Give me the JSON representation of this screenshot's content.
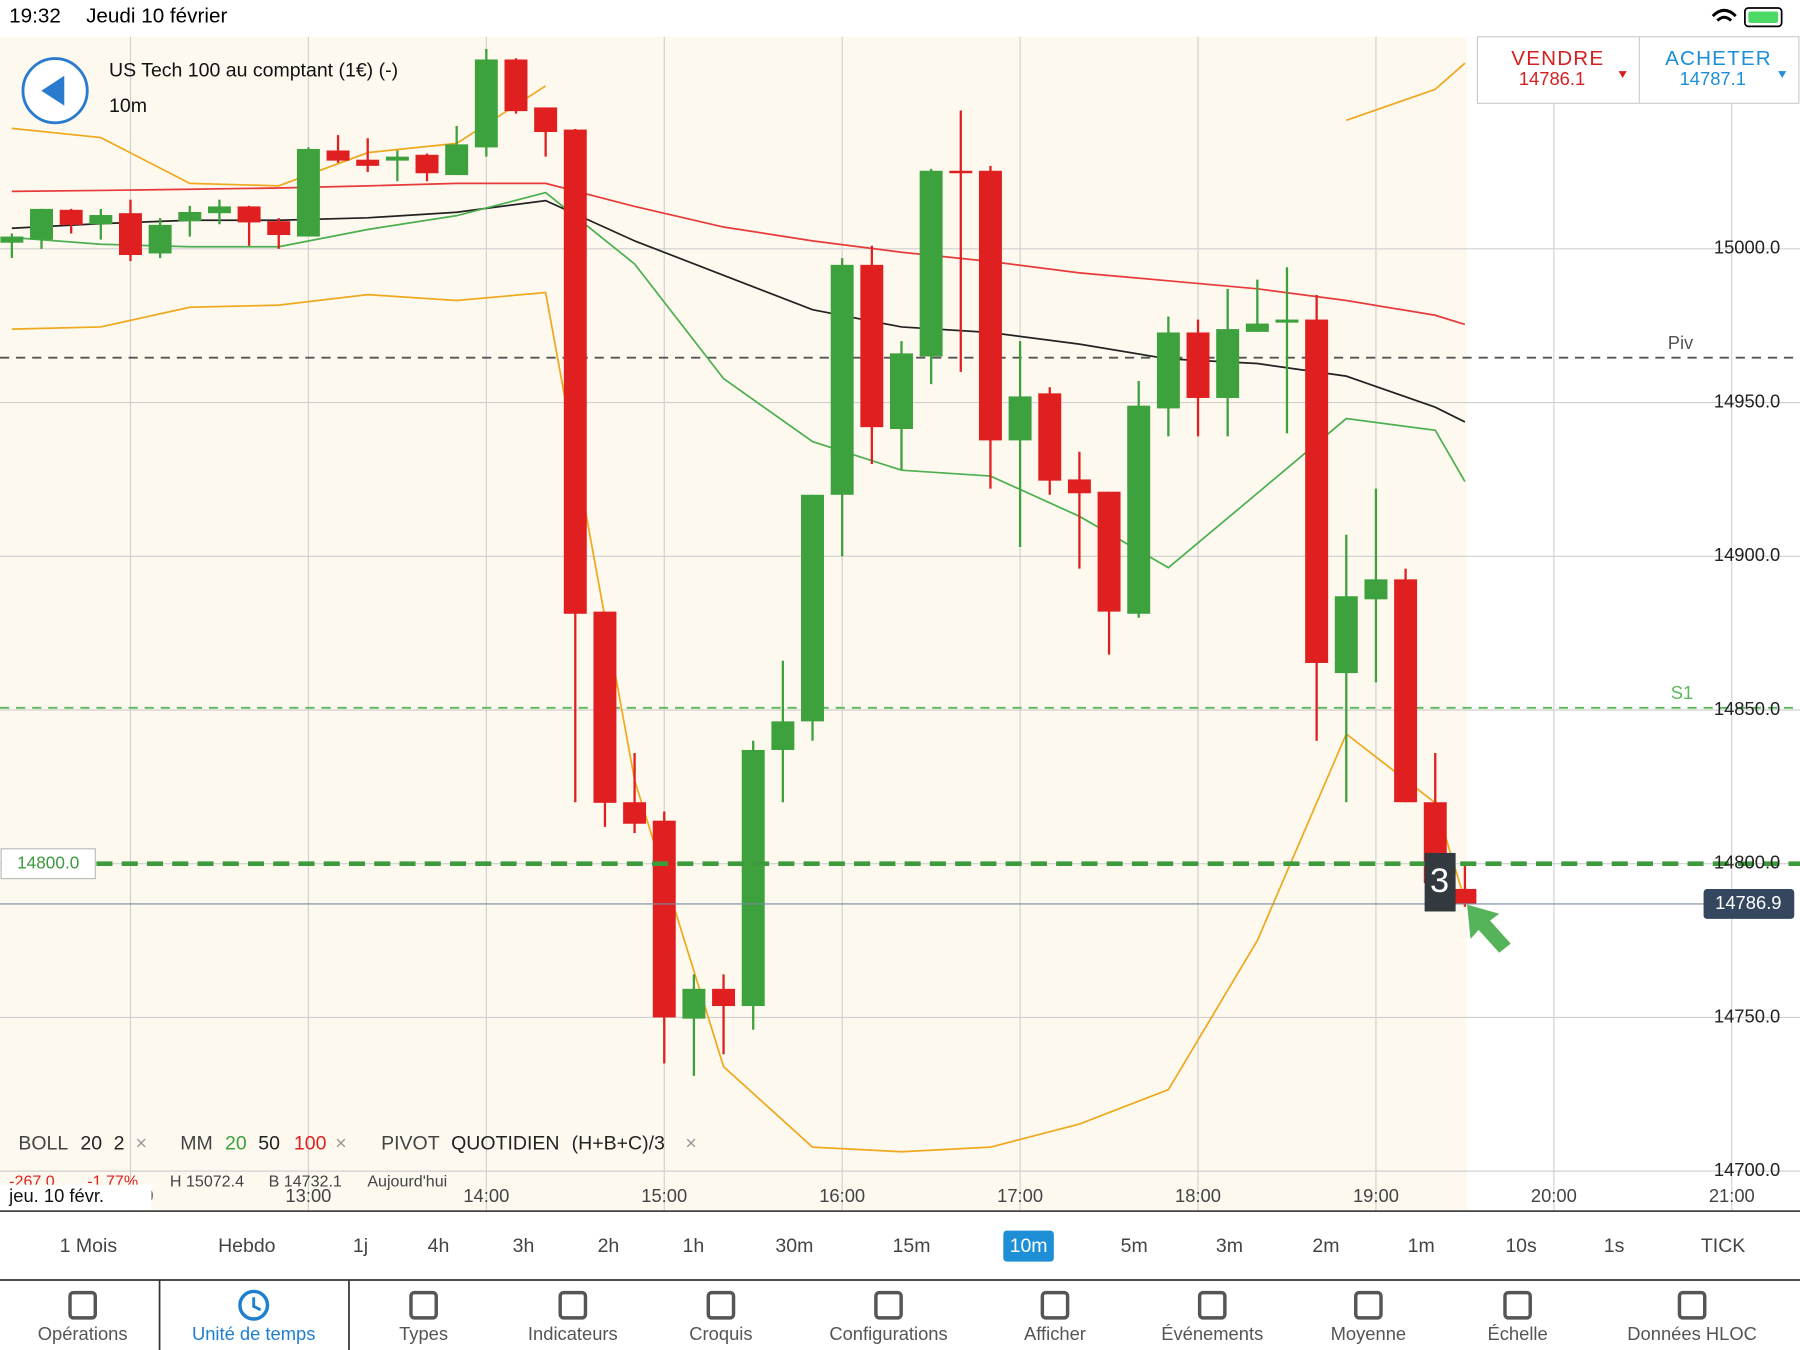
{
  "status_bar": {
    "time": "19:32",
    "date": "Jeudi 10 février"
  },
  "instrument": {
    "name": "US Tech 100 au comptant (1€) (-)",
    "timeframe": "10m"
  },
  "trade": {
    "sell_label": "VENDRE",
    "sell_price": "14786.1",
    "buy_label": "ACHETER",
    "buy_price": "14787.1"
  },
  "chart_data": {
    "type": "candlestick",
    "x": [
      "11:20",
      "11:30",
      "11:40",
      "11:50",
      "12:00",
      "12:10",
      "12:20",
      "12:30",
      "12:40",
      "12:50",
      "13:00",
      "13:10",
      "13:20",
      "13:30",
      "13:40",
      "13:50",
      "14:00",
      "14:10",
      "14:20",
      "14:30",
      "14:40",
      "14:50",
      "15:00",
      "15:10",
      "15:20",
      "15:30",
      "15:40",
      "15:50",
      "16:00",
      "16:10",
      "16:20",
      "16:30",
      "16:40",
      "16:50",
      "17:00",
      "17:10",
      "17:20",
      "17:30",
      "17:40",
      "17:50",
      "18:00",
      "18:10",
      "18:20",
      "18:30",
      "18:40",
      "18:50",
      "19:00",
      "19:10",
      "19:20",
      "19:30"
    ],
    "open": [
      15002,
      15003,
      15012.7,
      15008,
      15011.6,
      14998.5,
      15009,
      15011.6,
      15013.8,
      15009,
      15004,
      15032,
      15029,
      15028.7,
      15030.6,
      15024,
      15033,
      15061.6,
      15046,
      15038.8,
      14882,
      14820,
      14814,
      14749.6,
      14759.3,
      14753.7,
      14837,
      14846.3,
      14920,
      14994.8,
      14941.4,
      14965,
      15025.4,
      15025.4,
      14937.7,
      14953,
      14925,
      14921,
      14881.3,
      14948.1,
      14972.8,
      14951.5,
      14973,
      14976,
      14977,
      14862,
      14886,
      14892.5,
      14820,
      14791.8
    ],
    "high": [
      15005,
      15013,
      15013,
      15013,
      15016,
      15010,
      15014,
      15016,
      15014,
      15010,
      15033,
      15037,
      15036,
      15032,
      15031,
      15040,
      15065,
      15062,
      15046,
      15039,
      14882,
      14836,
      14817,
      14764,
      14764,
      14840,
      14866,
      14920,
      14997,
      15001,
      14970,
      15026,
      15045,
      15027,
      14970,
      14955,
      14934,
      14921,
      14957,
      14978,
      14977,
      14987,
      14990,
      14994,
      14985,
      14907,
      14922,
      14896,
      14836,
      14800
    ],
    "low": [
      14997,
      15000,
      15005,
      15003,
      14996,
      14997,
      15004,
      15008,
      15001,
      15000,
      15004,
      15028,
      15025,
      15022,
      15022,
      15024,
      15030,
      15044,
      15030,
      14820,
      14812,
      14810,
      14735,
      14731,
      14738,
      14746,
      14820,
      14840,
      14900,
      14930,
      14928,
      14956,
      14960,
      14922,
      14903,
      14920,
      14896,
      14868,
      14880,
      14939,
      14939,
      14939,
      14973,
      14940,
      14840,
      14820,
      14859,
      14820,
      14790,
      14786
    ],
    "close": [
      15004,
      15013,
      15007.8,
      15011,
      14998,
      15007.8,
      15012,
      15013.8,
      15008.6,
      15004.5,
      15032.5,
      15028.7,
      15027,
      15030,
      15024.6,
      15034,
      15061.6,
      15044.8,
      15038,
      14881.3,
      14819.8,
      14813,
      14750,
      14759.3,
      14753.7,
      14837,
      14846.3,
      14920,
      14994.8,
      14942,
      14966,
      15025.4,
      15024.6,
      14937.7,
      14952,
      14924.6,
      14920.5,
      14882,
      14949,
      14972.8,
      14951.5,
      14973.9,
      14975.7,
      14977,
      14865.3,
      14887,
      14892.5,
      14820,
      14793.7,
      14786.9
    ],
    "up_color": "#3da13d",
    "down_color": "#e02020",
    "xlim": [
      "11:16",
      "21:23"
    ],
    "xticks": [
      "12:00",
      "13:00",
      "14:00",
      "15:00",
      "16:00",
      "17:00",
      "18:00",
      "19:00",
      "20:00",
      "21:00"
    ],
    "ylim": [
      14687,
      15069
    ],
    "yticks": [
      {
        "value": 14700,
        "label": "14700.0"
      },
      {
        "value": 14750,
        "label": "14750.0"
      },
      {
        "value": 14800,
        "label": "14800.0"
      },
      {
        "value": 14850,
        "label": "14850.0"
      },
      {
        "value": 14900,
        "label": "14900.0"
      },
      {
        "value": 14950,
        "label": "14950.0"
      },
      {
        "value": 15000,
        "label": "15000.0"
      }
    ],
    "grid": true,
    "overlays": [
      {
        "color": "#f0a81e",
        "x": [
          "11:20",
          "11:50",
          "12:20",
          "12:50",
          "13:20",
          "13:50",
          "14:20",
          "14:50",
          "15:20",
          "15:50",
          "16:20",
          "16:50",
          "17:20",
          "17:50",
          "18:20",
          "18:50",
          "19:20",
          "19:30"
        ],
        "values": [
          15039.2,
          15036.2,
          15021.3,
          15020.5,
          15031.3,
          15034.3,
          15053,
          null,
          null,
          null,
          null,
          null,
          null,
          null,
          null,
          15041.8,
          15051.9,
          15060.4
        ]
      },
      {
        "color": "#f0a81e",
        "x": [
          "11:20",
          "11:50",
          "12:20",
          "12:50",
          "13:20",
          "13:50",
          "14:20",
          "14:50",
          "15:20",
          "15:50",
          "16:20",
          "16:50",
          "17:20",
          "17:50",
          "18:20",
          "18:50",
          "19:20",
          "19:30"
        ],
        "values": [
          14973.9,
          14974.6,
          14981,
          14981.7,
          14985.1,
          14983.2,
          14985.8,
          14827.2,
          14734,
          14707.8,
          14706.3,
          14707.8,
          14715.3,
          14726.5,
          14775,
          14842.2,
          14819.8,
          14788
        ]
      },
      {
        "color": "#e83a3a",
        "x": [
          "11:20",
          "11:50",
          "12:20",
          "12:50",
          "13:20",
          "13:50",
          "14:20",
          "14:50",
          "15:20",
          "15:50",
          "16:20",
          "16:50",
          "17:20",
          "17:50",
          "18:20",
          "18:50",
          "19:20",
          "19:30"
        ],
        "values": [
          15018.7,
          15019,
          15019.4,
          15019.8,
          15020.5,
          15021.3,
          15021.3,
          15013.8,
          15007.1,
          15002.6,
          14998.9,
          14995.9,
          14992.2,
          14989.6,
          14987,
          14983.2,
          14978.4,
          14975.4
        ]
      },
      {
        "color": "#222222",
        "x": [
          "11:20",
          "11:50",
          "12:20",
          "12:50",
          "13:20",
          "13:50",
          "14:20",
          "14:50",
          "15:20",
          "15:50",
          "16:20",
          "16:50",
          "17:20",
          "17:50",
          "18:20",
          "18:50",
          "19:20",
          "19:30"
        ],
        "values": [
          15006.7,
          15008.2,
          15009.3,
          15009.3,
          15010.1,
          15011.9,
          15015.7,
          15002.6,
          14991.4,
          14980.2,
          14974.6,
          14972.8,
          14969,
          14964.2,
          14962.7,
          14958.6,
          14948.5,
          14943.7
        ]
      },
      {
        "color": "#4caf50",
        "x": [
          "11:20",
          "11:50",
          "12:20",
          "12:50",
          "13:20",
          "13:50",
          "14:20",
          "14:50",
          "15:20",
          "15:50",
          "16:20",
          "16:50",
          "17:20",
          "17:50",
          "18:20",
          "18:50",
          "19:20",
          "19:30"
        ],
        "values": [
          15003.7,
          15001.5,
          15000.7,
          15000.7,
          15006.3,
          15010.8,
          15018.3,
          14995.1,
          14957.8,
          14937.3,
          14928,
          14926.1,
          14913,
          14896.3,
          14920.5,
          14944.8,
          14941,
          14924.3
        ]
      }
    ],
    "levels": [
      {
        "label": "Piv",
        "value": 14964.6,
        "color": "#555555"
      },
      {
        "label": "S1",
        "value": 14850.7,
        "color": "#5cb85c"
      }
    ],
    "order_level": {
      "value": 14800,
      "label": "14800.0",
      "color": "#3d9a3d"
    },
    "last_price": {
      "value": 14786.9,
      "label": "14786.9"
    },
    "annotation": "3"
  },
  "indicators": {
    "boll": {
      "label": "BOLL",
      "period": "20",
      "dev": "2"
    },
    "mm": {
      "label": "MM",
      "p1": "20",
      "p2": "50",
      "p3": "100"
    },
    "pivot": {
      "label": "PIVOT",
      "mode": "QUOTIDIEN",
      "formula": "(H+B+C)/3"
    },
    "remove": "×"
  },
  "info_row": {
    "change": "-267.0",
    "change_pct": "-1.77%",
    "high": "H 15072.4",
    "low": "B 14732.1",
    "period": "Aujourd'hui"
  },
  "date_label": "jeu. 10 févr.",
  "timeframes": [
    "1 Mois",
    "Hebdo",
    "1j",
    "4h",
    "3h",
    "2h",
    "1h",
    "30m",
    "15m",
    "10m",
    "5m",
    "3m",
    "2m",
    "1m",
    "10s",
    "1s",
    "TICK"
  ],
  "toolbar": [
    "Opérations",
    "Unité de temps",
    "Types",
    "Indicateurs",
    "Croquis",
    "Configurations",
    "Afficher",
    "Événements",
    "Moyenne",
    "Échelle",
    "Données HLOC"
  ]
}
